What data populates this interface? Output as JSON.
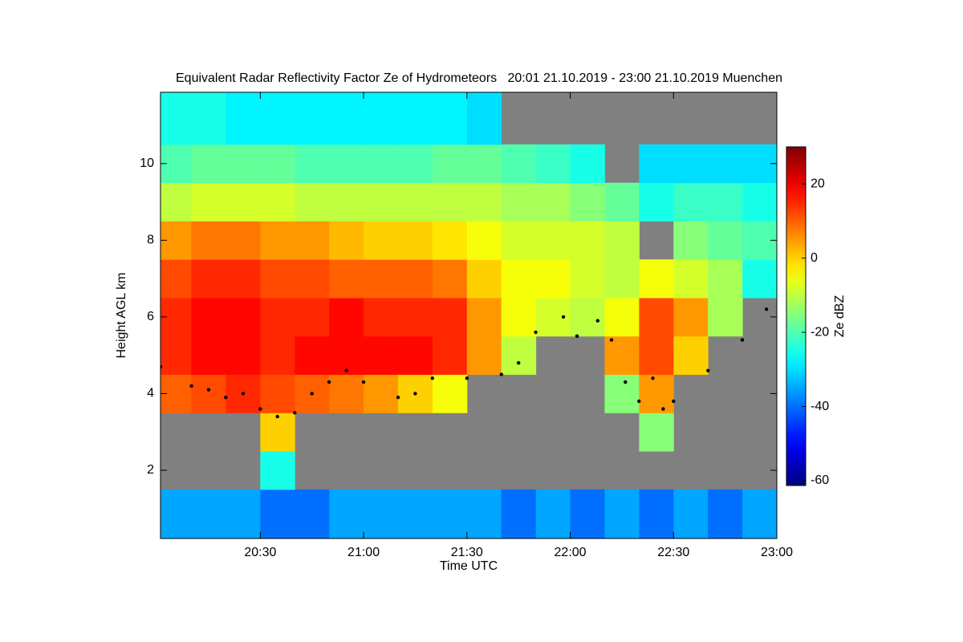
{
  "chart_data": {
    "type": "heatmap",
    "title": "Equivalent Radar Reflectivity Factor Ze of Hydrometeors   20:01 21.10.2019 - 23:00 21.10.2019 Muenchen",
    "x_label": "Time UTC",
    "y_label": "Height AGL km",
    "colorbar_label": "Ze dBZ",
    "background": "#808080",
    "x": [
      20.083,
      20.25,
      20.417,
      20.583,
      20.75,
      20.917,
      21.083,
      21.25,
      21.417,
      21.583,
      21.75,
      21.917,
      22.083,
      22.25,
      22.417,
      22.583,
      22.75,
      22.917
    ],
    "y": [
      1,
      2,
      3,
      4,
      5,
      6,
      7,
      8,
      9,
      10,
      11
    ],
    "values": [
      [
        -35,
        -35,
        -35,
        -40,
        -40,
        -35,
        -35,
        -35,
        -35,
        -35,
        -40,
        -35,
        -40,
        -35,
        -40,
        -35,
        -40,
        -35
      ],
      [
        null,
        null,
        null,
        -25,
        null,
        null,
        null,
        null,
        null,
        null,
        null,
        null,
        null,
        null,
        null,
        null,
        null,
        null
      ],
      [
        null,
        null,
        null,
        0,
        null,
        null,
        null,
        null,
        null,
        null,
        null,
        null,
        null,
        null,
        -15,
        null,
        null,
        null
      ],
      [
        10,
        12,
        15,
        12,
        10,
        8,
        5,
        0,
        -5,
        null,
        null,
        null,
        null,
        -15,
        5,
        null,
        null,
        null
      ],
      [
        15,
        18,
        18,
        15,
        18,
        18,
        18,
        18,
        15,
        5,
        -10,
        null,
        null,
        5,
        12,
        0,
        null,
        null
      ],
      [
        15,
        18,
        18,
        15,
        15,
        18,
        15,
        15,
        15,
        5,
        -5,
        -8,
        -10,
        -5,
        12,
        5,
        -12,
        null
      ],
      [
        12,
        15,
        15,
        12,
        12,
        10,
        10,
        10,
        8,
        0,
        -5,
        -5,
        -8,
        -10,
        -5,
        -8,
        -12,
        -25
      ],
      [
        5,
        8,
        8,
        5,
        5,
        2,
        0,
        0,
        -2,
        -5,
        -8,
        -8,
        -8,
        -10,
        null,
        -15,
        -18,
        -20
      ],
      [
        -10,
        -8,
        -8,
        -8,
        -10,
        -10,
        -10,
        -10,
        -10,
        -10,
        -12,
        -12,
        -15,
        -18,
        -25,
        -22,
        -22,
        -25
      ],
      [
        -20,
        -18,
        -18,
        -18,
        -20,
        -20,
        -20,
        -20,
        -18,
        -18,
        -20,
        -22,
        -25,
        null,
        -30,
        -30,
        -30,
        -30
      ],
      [
        -25,
        -25,
        -28,
        -28,
        -28,
        -28,
        -28,
        -28,
        -28,
        -30,
        null,
        null,
        null,
        null,
        null,
        null,
        null,
        null
      ]
    ],
    "melting_layer": {
      "color": "#000000",
      "x": [
        20.017,
        20.167,
        20.25,
        20.333,
        20.417,
        20.5,
        20.583,
        20.667,
        20.75,
        20.833,
        20.917,
        21.0,
        21.167,
        21.25,
        21.333,
        21.5,
        21.667,
        21.75,
        21.833,
        21.967,
        22.033,
        22.133,
        22.2,
        22.267,
        22.333,
        22.4,
        22.45,
        22.5,
        22.667,
        22.833,
        22.95
      ],
      "y": [
        4.7,
        4.2,
        4.1,
        3.9,
        4.0,
        3.6,
        3.4,
        3.5,
        4.0,
        4.3,
        4.6,
        4.3,
        3.9,
        4.0,
        4.4,
        4.4,
        4.5,
        4.8,
        5.6,
        6.0,
        5.5,
        5.9,
        5.4,
        4.3,
        3.8,
        4.4,
        3.6,
        3.8,
        4.6,
        5.4,
        6.2
      ]
    },
    "xlim": [
      20.017,
      23.0
    ],
    "ylim": [
      0.22,
      11.86
    ],
    "xticks": [
      {
        "value": 20.5,
        "label": "20:30"
      },
      {
        "value": 21.0,
        "label": "21:00"
      },
      {
        "value": 21.5,
        "label": "21:30"
      },
      {
        "value": 22.0,
        "label": "22:00"
      },
      {
        "value": 22.5,
        "label": "22:30"
      },
      {
        "value": 23.0,
        "label": "23:00"
      }
    ],
    "yticks": [
      2,
      4,
      6,
      8,
      10
    ],
    "clim": [
      -61.3,
      30
    ],
    "cticks": [
      -60,
      -40,
      -20,
      0,
      20
    ],
    "colormap": "jet"
  }
}
